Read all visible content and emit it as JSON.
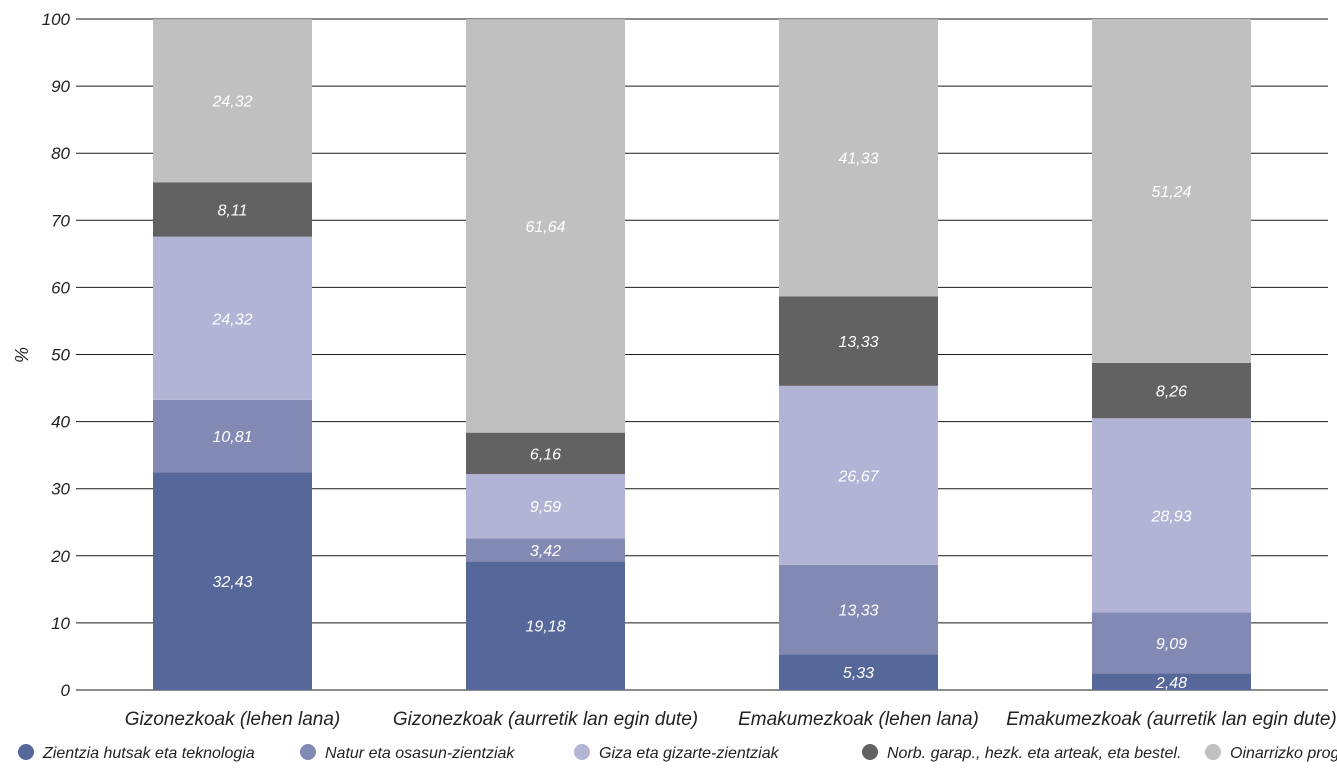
{
  "chart_data": {
    "type": "bar",
    "stacked": true,
    "ylabel": "%",
    "ylim": [
      0,
      100
    ],
    "yticks": [
      0,
      10,
      20,
      30,
      40,
      50,
      60,
      70,
      80,
      90,
      100
    ],
    "grid": true,
    "legend_position": "bottom",
    "categories": [
      "Gizonezkoak (lehen lana)",
      "Gizonezkoak (aurretik lan egin dute)",
      "Emakumezkoak (lehen lana)",
      "Emakumezkoak (aurretik lan egin dute)"
    ],
    "series": [
      {
        "name": "Zientzia hutsak eta teknologia",
        "color": "#56679a",
        "values": [
          32.43,
          19.18,
          5.33,
          2.48
        ],
        "labels": [
          "32,43",
          "19,18",
          "5,33",
          "2,48"
        ]
      },
      {
        "name": "Natur eta osasun-zientziak",
        "color": "#828ab4",
        "values": [
          10.81,
          3.42,
          13.33,
          9.09
        ],
        "labels": [
          "10,81",
          "3,42",
          "13,33",
          "9,09"
        ]
      },
      {
        "name": "Giza eta gizarte-zientziak",
        "color": "#b1b4d4",
        "values": [
          24.32,
          9.59,
          26.67,
          28.93
        ],
        "labels": [
          "24,32",
          "9,59",
          "26,67",
          "28,93"
        ]
      },
      {
        "name": "Norb. garap., hezk. eta arteak, eta bestel.",
        "color": "#626262",
        "values": [
          8.11,
          6.16,
          13.33,
          8.26
        ],
        "labels": [
          "8,11",
          "6,16",
          "13,33",
          "8,26"
        ]
      },
      {
        "name": "Oinarrizko programak",
        "color": "#c0c0c0",
        "values": [
          24.32,
          61.64,
          41.33,
          51.24
        ],
        "labels": [
          "24,32",
          "61,64",
          "41,33",
          "51,24"
        ]
      }
    ]
  }
}
